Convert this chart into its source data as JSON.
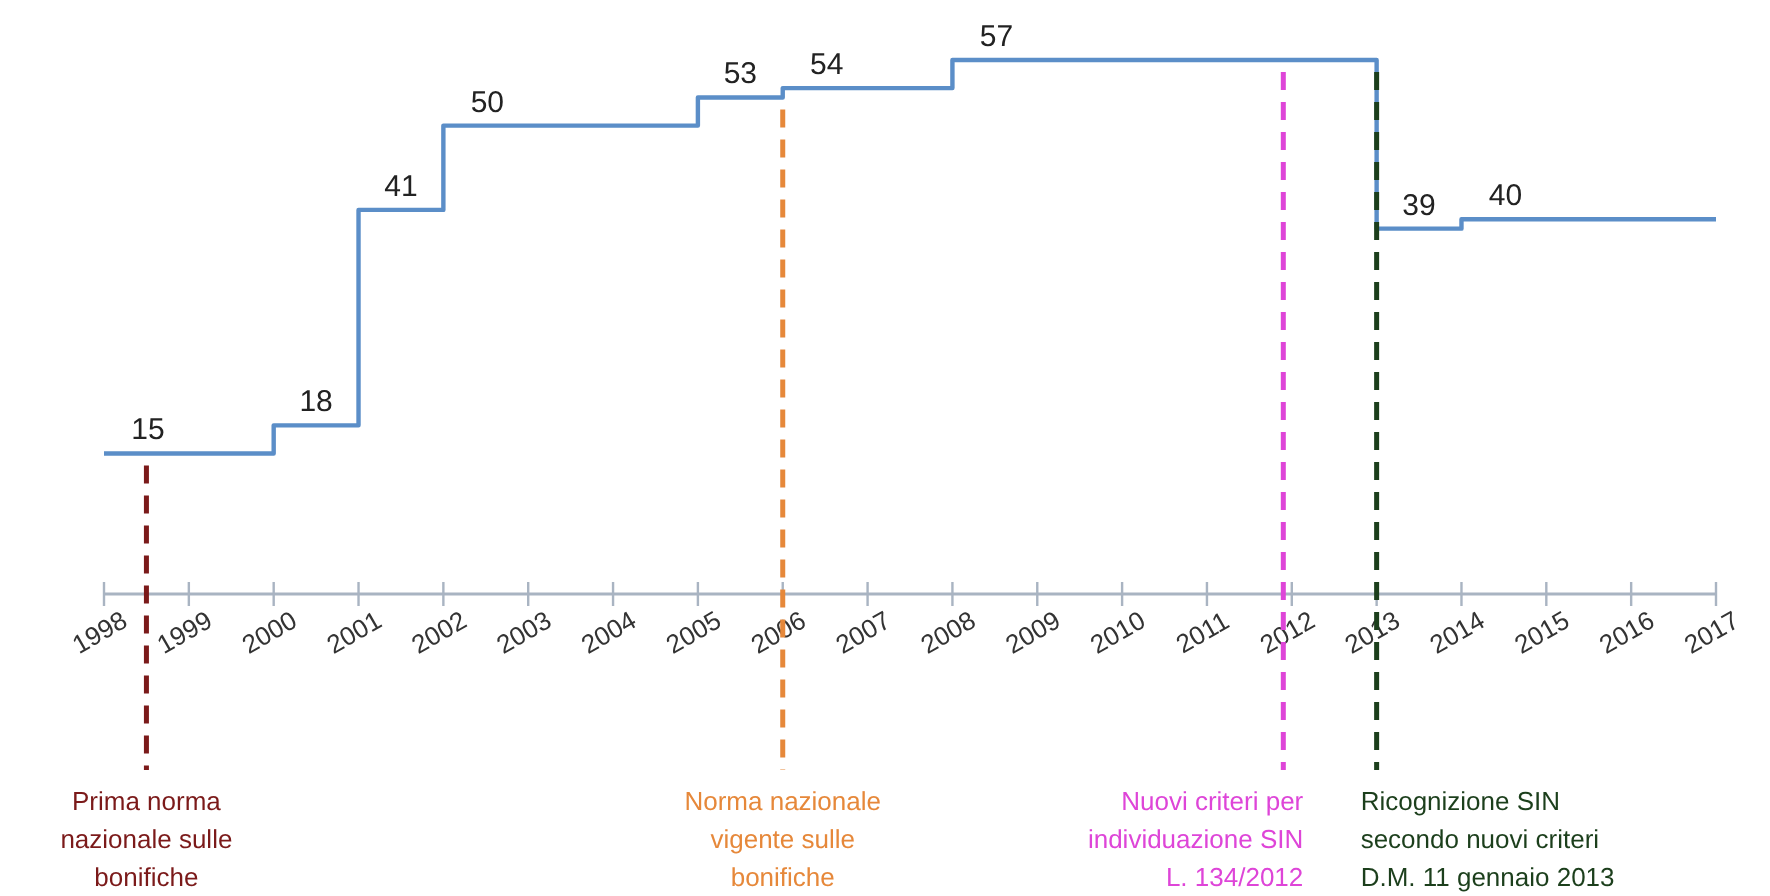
{
  "chart_data": {
    "type": "step",
    "x": [
      1998,
      2000,
      2001,
      2002,
      2005,
      2006,
      2008,
      2013,
      2014,
      2017
    ],
    "series": [
      {
        "color": "#5b8ec8",
        "values": [
          15,
          18,
          41,
          50,
          53,
          54,
          57,
          39,
          40,
          40
        ],
        "value_labels": [
          "15",
          "18",
          "41",
          "50",
          "53",
          "54",
          "57",
          "39",
          "40",
          null
        ]
      }
    ],
    "xlim": [
      1998,
      2017
    ],
    "xticks": [
      1998,
      1999,
      2000,
      2001,
      2002,
      2003,
      2004,
      2005,
      2006,
      2007,
      2008,
      2009,
      2010,
      2011,
      2012,
      2013,
      2014,
      2015,
      2016,
      2017
    ],
    "tick_labels": "x",
    "grid": false,
    "ref_lines": [
      {
        "axis": "x",
        "value": 1998.5,
        "label": "Prima norma\nnazionale sulle\nbonifiche",
        "color": "#7b1a1a",
        "line_style": "dashed"
      },
      {
        "axis": "x",
        "value": 2006,
        "label": "Norma nazionale\nvigente sulle\nbonifiche",
        "color": "#e6883a",
        "line_style": "dashed"
      },
      {
        "axis": "x",
        "value": 2011.9,
        "label": "Nuovi criteri per\nindividuazione SIN\nL. 134/2012",
        "color": "#de45d8",
        "line_style": "dashed"
      },
      {
        "axis": "x",
        "value": 2013,
        "label": "Ricognizione SIN\nsecondo nuovi criteri\nD.M. 11 gennaio 2013",
        "color": "#1c3f1c",
        "line_style": "dashed"
      }
    ]
  }
}
